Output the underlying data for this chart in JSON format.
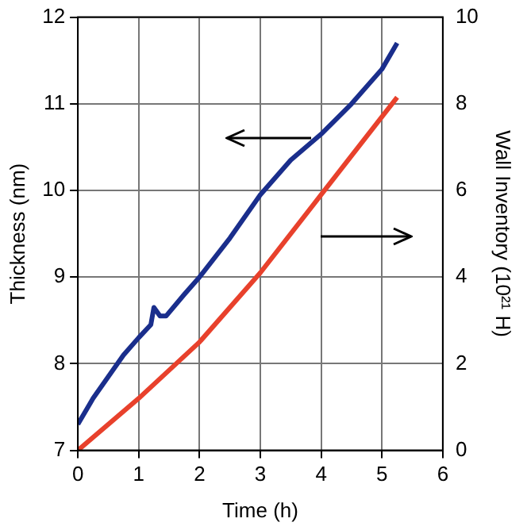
{
  "chart_data": {
    "type": "line",
    "xlabel": "Time (h)",
    "ylabel": "Thickness (nm)",
    "y2label": "Wall Inventory (10²¹ H)",
    "xlim": [
      0,
      6
    ],
    "xticks": [
      0,
      1,
      2,
      3,
      4,
      5,
      6
    ],
    "ylim": [
      7,
      12
    ],
    "yticks": [
      7,
      8,
      9,
      10,
      11,
      12
    ],
    "y2lim": [
      0,
      10
    ],
    "y2ticks": [
      0,
      2,
      4,
      6,
      8,
      10
    ],
    "grid": true,
    "line_style": "solid",
    "marker": "none",
    "series": [
      {
        "color": "#1a2e8c",
        "x": [
          0,
          0.25,
          0.5,
          0.75,
          1,
          1.2,
          1.25,
          1.35,
          1.45,
          1.75,
          2,
          2.5,
          3,
          3.5,
          4,
          4.5,
          5,
          5.25
        ],
        "values": [
          7.3,
          7.6,
          7.85,
          8.1,
          8.3,
          8.45,
          8.65,
          8.55,
          8.55,
          8.8,
          9.0,
          9.45,
          9.95,
          10.35,
          10.65,
          11.0,
          11.4,
          11.7
        ]
      },
      {
        "color": "#e8412c",
        "axis": "y2",
        "x": [
          0,
          1,
          2,
          3,
          4,
          5,
          5.25
        ],
        "values": [
          0,
          1.2,
          2.5,
          4.1,
          5.9,
          7.7,
          8.15
        ]
      }
    ]
  }
}
